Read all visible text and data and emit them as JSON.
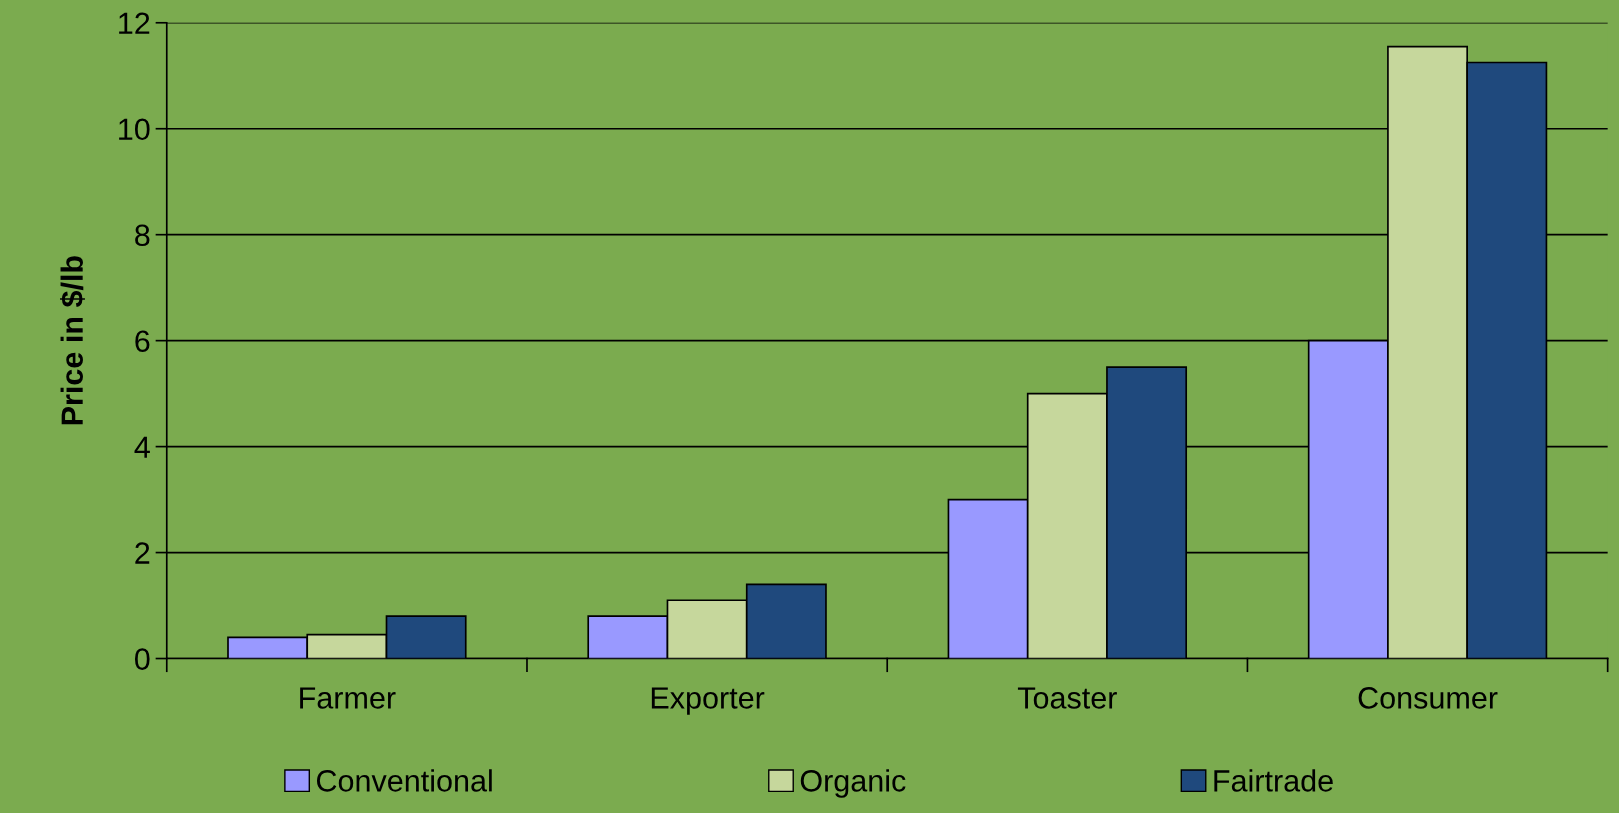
{
  "chart_data": {
    "type": "bar",
    "ylabel": "Price in $/lb",
    "categories": [
      "Farmer",
      "Exporter",
      "Toaster",
      "Consumer"
    ],
    "series": [
      {
        "name": "Conventional",
        "color": "#9999ff",
        "values": [
          0.4,
          0.8,
          3.0,
          6.0
        ]
      },
      {
        "name": "Organic",
        "color": "#c6d79c",
        "values": [
          0.45,
          1.1,
          5.0,
          11.55
        ]
      },
      {
        "name": "Fairtrade",
        "color": "#1f497d",
        "values": [
          0.8,
          1.4,
          5.5,
          11.25
        ]
      }
    ],
    "ylim": [
      0,
      12
    ],
    "yticks": [
      0,
      2,
      4,
      6,
      8,
      10,
      12
    ],
    "grid": "y",
    "legend": "bottom"
  }
}
